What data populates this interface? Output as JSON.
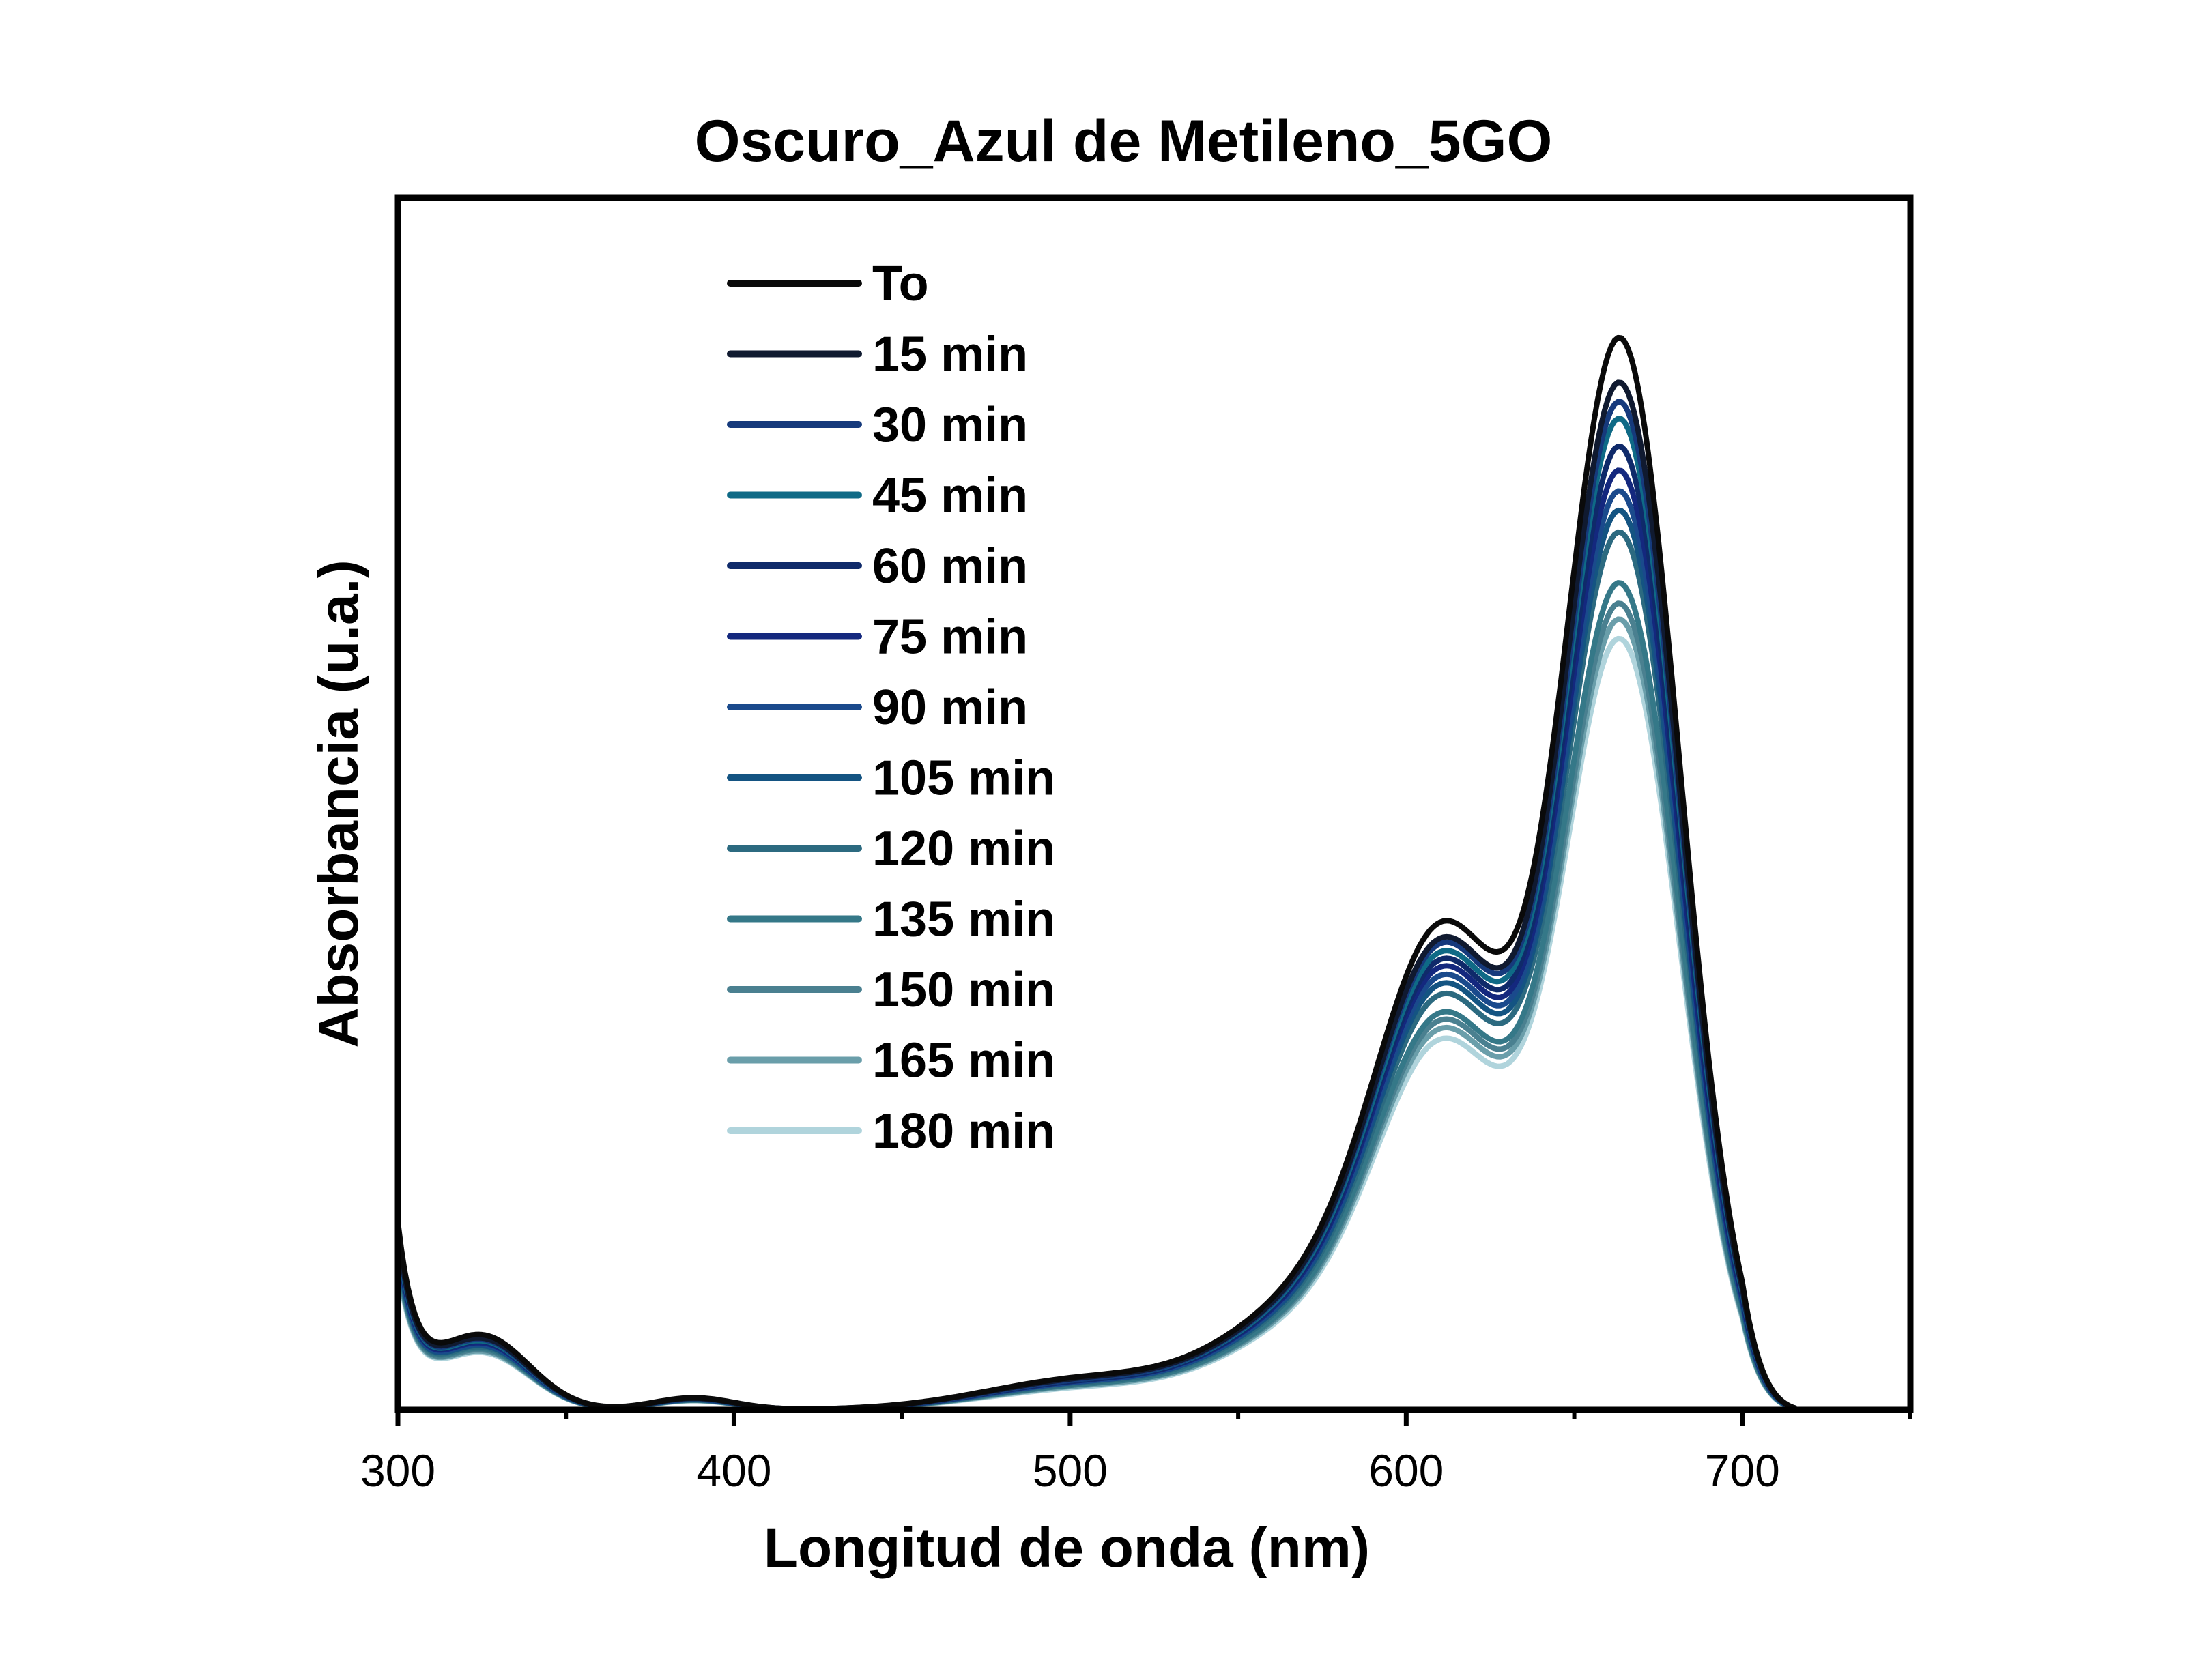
{
  "chart_data": {
    "type": "line",
    "title": "Oscuro_Azul de Metileno_5GO",
    "xlabel": "Longitud de onda (nm)",
    "ylabel": "Absorbancia (u.a.)",
    "xlim": [
      300,
      750
    ],
    "ylim": [
      0,
      1
    ],
    "x_ticks": [
      300,
      400,
      500,
      600,
      700
    ],
    "x_minor_ticks": [
      350,
      450,
      550,
      650,
      750
    ],
    "y_ticks_labeled": false,
    "grid": false,
    "legend_position": "upper-left",
    "series": [
      {
        "name": "To",
        "color": "#0a0a0a",
        "peak_664": 0.885,
        "shoulder_612": 0.46,
        "uv_310": 0.11,
        "vis_500": 0.025
      },
      {
        "name": "15 min",
        "color": "#101a30",
        "peak_664": 0.848,
        "shoulder_612": 0.445,
        "uv_310": 0.105,
        "vis_500": 0.024
      },
      {
        "name": "30 min",
        "color": "#163a7c",
        "peak_664": 0.832,
        "shoulder_612": 0.44,
        "uv_310": 0.103,
        "vis_500": 0.023
      },
      {
        "name": "45 min",
        "color": "#0f6a86",
        "peak_664": 0.818,
        "shoulder_612": 0.432,
        "uv_310": 0.101,
        "vis_500": 0.023
      },
      {
        "name": "60 min",
        "color": "#0f2a6a",
        "peak_664": 0.795,
        "shoulder_612": 0.425,
        "uv_310": 0.1,
        "vis_500": 0.022
      },
      {
        "name": "75 min",
        "color": "#14287e",
        "peak_664": 0.775,
        "shoulder_612": 0.418,
        "uv_310": 0.098,
        "vis_500": 0.022
      },
      {
        "name": "90 min",
        "color": "#1a4a8c",
        "peak_664": 0.758,
        "shoulder_612": 0.41,
        "uv_310": 0.096,
        "vis_500": 0.021
      },
      {
        "name": "105 min",
        "color": "#145482",
        "peak_664": 0.742,
        "shoulder_612": 0.402,
        "uv_310": 0.094,
        "vis_500": 0.021
      },
      {
        "name": "120 min",
        "color": "#2c6a80",
        "peak_664": 0.724,
        "shoulder_612": 0.392,
        "uv_310": 0.092,
        "vis_500": 0.02
      },
      {
        "name": "135 min",
        "color": "#357888",
        "peak_664": 0.682,
        "shoulder_612": 0.375,
        "uv_310": 0.09,
        "vis_500": 0.019
      },
      {
        "name": "150 min",
        "color": "#4a8090",
        "peak_664": 0.665,
        "shoulder_612": 0.368,
        "uv_310": 0.088,
        "vis_500": 0.019
      },
      {
        "name": "165 min",
        "color": "#6a9eaa",
        "peak_664": 0.652,
        "shoulder_612": 0.36,
        "uv_310": 0.086,
        "vis_500": 0.018
      },
      {
        "name": "180 min",
        "color": "#b0d4dc",
        "peak_664": 0.636,
        "shoulder_612": 0.35,
        "uv_310": 0.084,
        "vis_500": 0.017
      }
    ]
  }
}
